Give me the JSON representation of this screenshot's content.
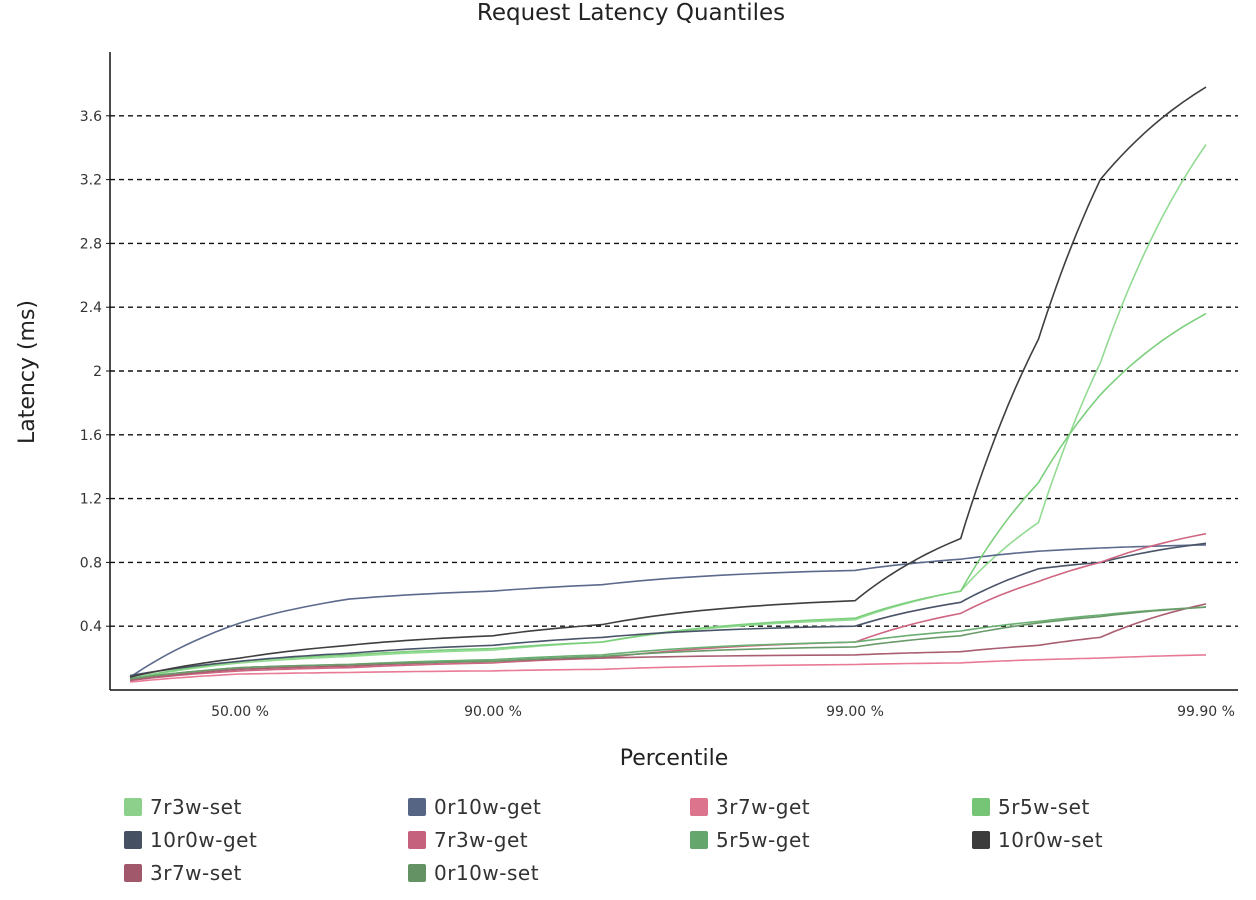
{
  "chart_data": {
    "type": "line",
    "title": "Request Latency Quantiles",
    "xlabel": "Percentile",
    "ylabel": "Latency (ms)",
    "x_scale": "log-percentile",
    "x_ticks": [
      "50.00 %",
      "90.00 %",
      "99.00 %",
      "99.90 %"
    ],
    "y_ticks": [
      "0.4",
      "0.8",
      "1.2",
      "1.6",
      "2",
      "2.4",
      "2.8",
      "3.2",
      "3.6"
    ],
    "ylim": [
      0,
      4.0
    ],
    "grid": "horizontal-dashed",
    "legend_position": "bottom",
    "x": [
      0,
      50,
      75,
      90,
      95,
      99,
      99.5,
      99.7,
      99.8,
      99.9
    ],
    "series": [
      {
        "name": "7r3w-set",
        "color": "#93db93",
        "values": [
          0.07,
          0.17,
          0.21,
          0.25,
          0.3,
          0.44,
          0.62,
          1.05,
          2.05,
          3.42
        ]
      },
      {
        "name": "0r10w-get",
        "color": "#5c6a8c",
        "values": [
          0.08,
          0.42,
          0.57,
          0.62,
          0.66,
          0.75,
          0.82,
          0.87,
          0.89,
          0.91
        ]
      },
      {
        "name": "3r7w-get",
        "color": "#e87a96",
        "values": [
          0.05,
          0.1,
          0.11,
          0.12,
          0.13,
          0.16,
          0.17,
          0.19,
          0.2,
          0.22
        ]
      },
      {
        "name": "5r5w-set",
        "color": "#7ccf7c",
        "values": [
          0.07,
          0.18,
          0.22,
          0.26,
          0.3,
          0.45,
          0.62,
          1.3,
          1.85,
          2.36
        ]
      },
      {
        "name": "10r0w-get",
        "color": "#4a5468",
        "values": [
          0.09,
          0.18,
          0.23,
          0.28,
          0.33,
          0.4,
          0.55,
          0.76,
          0.8,
          0.92
        ]
      },
      {
        "name": "7r3w-get",
        "color": "#cf6682",
        "values": [
          0.06,
          0.12,
          0.14,
          0.17,
          0.2,
          0.3,
          0.48,
          0.68,
          0.8,
          0.98
        ]
      },
      {
        "name": "5r5w-get",
        "color": "#6aaf72",
        "values": [
          0.07,
          0.14,
          0.16,
          0.19,
          0.22,
          0.3,
          0.37,
          0.43,
          0.47,
          0.52
        ]
      },
      {
        "name": "10r0w-set",
        "color": "#3f3f3f",
        "values": [
          0.08,
          0.2,
          0.28,
          0.34,
          0.41,
          0.56,
          0.95,
          2.2,
          3.2,
          3.78
        ]
      },
      {
        "name": "3r7w-set",
        "color": "#a85d70",
        "values": [
          0.06,
          0.13,
          0.15,
          0.18,
          0.2,
          0.22,
          0.24,
          0.28,
          0.33,
          0.54
        ]
      },
      {
        "name": "0r10w-set",
        "color": "#6a9a6a",
        "values": [
          0.07,
          0.14,
          0.16,
          0.18,
          0.21,
          0.27,
          0.34,
          0.42,
          0.46,
          0.52
        ]
      }
    ]
  }
}
